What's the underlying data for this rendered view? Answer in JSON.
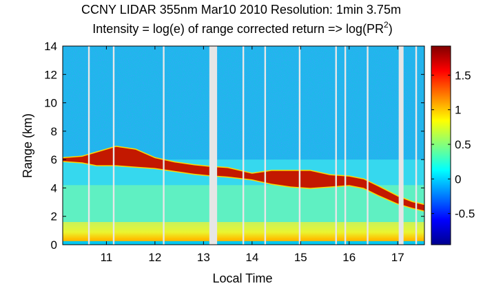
{
  "chart_data": {
    "type": "heatmap",
    "title": "CCNY LIDAR 355nm Mar10 2010 Resolution: 1min 3.75m",
    "subtitle": {
      "prefix": "Intensity = log(e) of range corrected return => log(PR",
      "superscript": "2",
      "suffix": ")"
    },
    "xlabel": "Local Time",
    "ylabel": "Range (km)",
    "xlim": [
      10.1,
      17.55
    ],
    "ylim": [
      0,
      14
    ],
    "xticks": [
      11,
      12,
      13,
      14,
      15,
      16,
      17
    ],
    "yticks": [
      0,
      2,
      4,
      6,
      8,
      10,
      12,
      14
    ],
    "colorbar": {
      "range": [
        -0.95,
        1.92
      ],
      "ticks": [
        -0.5,
        0,
        0.5,
        1,
        1.5
      ],
      "tick_labels": [
        "-0.5",
        "0",
        "0.5",
        "1",
        "1.5"
      ],
      "colormap": "jet"
    },
    "data_gaps": [
      {
        "from": 13.12,
        "to": 13.28
      },
      {
        "from": 17.02,
        "to": 17.12
      }
    ],
    "dropout_lines": [
      10.64,
      11.15,
      12.18,
      13.82,
      14.27,
      14.98,
      15.73,
      15.92,
      16.38,
      17.38
    ],
    "cloud_layer_km": {
      "x": [
        10.1,
        10.5,
        10.8,
        11.2,
        11.6,
        12.0,
        12.4,
        12.8,
        13.1,
        13.5,
        14.0,
        14.4,
        14.8,
        15.2,
        15.6,
        16.0,
        16.3,
        16.6,
        17.0,
        17.3,
        17.55
      ],
      "base": [
        5.9,
        5.8,
        5.6,
        5.6,
        5.5,
        5.4,
        5.2,
        5.0,
        4.9,
        4.8,
        4.6,
        4.3,
        4.1,
        4.0,
        4.1,
        4.2,
        4.0,
        3.5,
        2.9,
        2.6,
        2.4
      ],
      "top": [
        6.1,
        6.2,
        6.5,
        6.9,
        6.7,
        6.1,
        5.8,
        5.6,
        5.5,
        5.4,
        5.0,
        5.2,
        5.2,
        5.2,
        4.9,
        4.8,
        4.6,
        4.1,
        3.4,
        3.0,
        2.8
      ]
    },
    "boundary_layer_top_km": 1.6
  }
}
